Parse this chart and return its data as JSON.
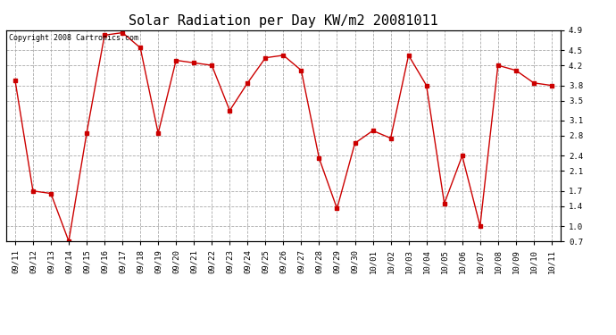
{
  "title": "Solar Radiation per Day KW/m2 20081011",
  "copyright_text": "Copyright 2008 Cartronics.com",
  "dates": [
    "09/11",
    "09/12",
    "09/13",
    "09/14",
    "09/15",
    "09/16",
    "09/17",
    "09/18",
    "09/19",
    "09/20",
    "09/21",
    "09/22",
    "09/23",
    "09/24",
    "09/25",
    "09/26",
    "09/27",
    "09/28",
    "09/29",
    "09/30",
    "10/01",
    "10/02",
    "10/03",
    "10/04",
    "10/05",
    "10/06",
    "10/07",
    "10/08",
    "10/09",
    "10/10",
    "10/11"
  ],
  "values": [
    3.9,
    1.7,
    1.65,
    0.7,
    2.85,
    4.8,
    4.85,
    4.55,
    2.85,
    4.3,
    4.25,
    4.2,
    3.3,
    3.85,
    4.35,
    4.4,
    4.1,
    2.35,
    1.35,
    2.65,
    2.9,
    2.75,
    4.4,
    3.8,
    1.45,
    2.4,
    1.0,
    4.2,
    4.1,
    3.85,
    3.8
  ],
  "line_color": "#cc0000",
  "marker": "s",
  "marker_size": 2.5,
  "line_width": 1.0,
  "ylim": [
    0.7,
    4.9
  ],
  "yticks": [
    0.7,
    1.0,
    1.4,
    1.7,
    2.1,
    2.4,
    2.8,
    3.1,
    3.5,
    3.8,
    4.2,
    4.5,
    4.9
  ],
  "grid_color": "#aaaaaa",
  "grid_linestyle": "--",
  "background_color": "#ffffff",
  "title_fontsize": 11,
  "tick_fontsize": 6.5,
  "copyright_fontsize": 6
}
